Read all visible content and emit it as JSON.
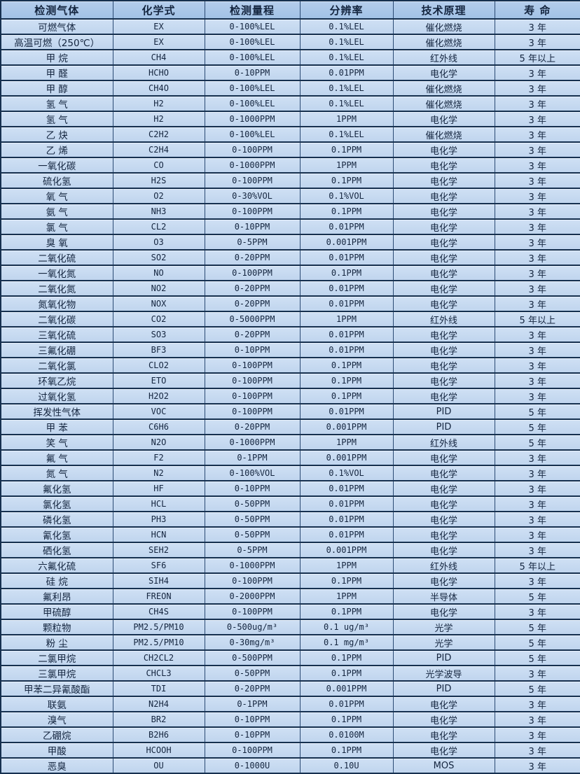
{
  "colors": {
    "header_bg": "#a9c6e8",
    "row_bg": "#c6d9f0",
    "border_dark": "#16304f",
    "border_vertical": "#2b4a73",
    "text": "#14253f"
  },
  "table": {
    "columns": [
      "检测气体",
      "化学式",
      "检测量程",
      "分辨率",
      "技术原理",
      "寿  命"
    ],
    "rows": [
      {
        "gas": "可燃气体",
        "formula": "EX",
        "range": "0-100%LEL",
        "resolution": "0.1%LEL",
        "principle": "催化燃烧",
        "lifespan": "3 年"
      },
      {
        "gas": "高温可燃（250℃）",
        "formula": "EX",
        "range": "0-100%LEL",
        "resolution": "0.1%LEL",
        "principle": "催化燃烧",
        "lifespan": "3 年"
      },
      {
        "gas": "甲  烷",
        "formula": "CH4",
        "range": "0-100%LEL",
        "resolution": "0.1%LEL",
        "principle": "红外线",
        "lifespan": "5 年以上"
      },
      {
        "gas": "甲  醛",
        "formula": "HCHO",
        "range": "0-10PPM",
        "resolution": "0.01PPM",
        "principle": "电化学",
        "lifespan": "3 年"
      },
      {
        "gas": "甲  醇",
        "formula": "CH4O",
        "range": "0-100%LEL",
        "resolution": "0.1%LEL",
        "principle": "催化燃烧",
        "lifespan": "3 年"
      },
      {
        "gas": "氢  气",
        "formula": "H2",
        "range": "0-100%LEL",
        "resolution": "0.1%LEL",
        "principle": "催化燃烧",
        "lifespan": "3 年"
      },
      {
        "gas": "氢  气",
        "formula": "H2",
        "range": "0-1000PPM",
        "resolution": "1PPM",
        "principle": "电化学",
        "lifespan": "3 年"
      },
      {
        "gas": "乙  炔",
        "formula": "C2H2",
        "range": "0-100%LEL",
        "resolution": "0.1%LEL",
        "principle": "催化燃烧",
        "lifespan": "3 年"
      },
      {
        "gas": "乙  烯",
        "formula": "C2H4",
        "range": "0-100PPM",
        "resolution": "0.1PPM",
        "principle": "电化学",
        "lifespan": "3 年"
      },
      {
        "gas": "一氧化碳",
        "formula": "CO",
        "range": "0-1000PPM",
        "resolution": "1PPM",
        "principle": "电化学",
        "lifespan": "3 年"
      },
      {
        "gas": "硫化氢",
        "formula": "H2S",
        "range": "0-100PPM",
        "resolution": "0.1PPM",
        "principle": "电化学",
        "lifespan": "3 年"
      },
      {
        "gas": "氧  气",
        "formula": "O2",
        "range": "0-30%VOL",
        "resolution": "0.1%VOL",
        "principle": "电化学",
        "lifespan": "3 年"
      },
      {
        "gas": "氨  气",
        "formula": "NH3",
        "range": "0-100PPM",
        "resolution": "0.1PPM",
        "principle": "电化学",
        "lifespan": "3 年"
      },
      {
        "gas": "氯  气",
        "formula": "CL2",
        "range": "0-10PPM",
        "resolution": "0.01PPM",
        "principle": "电化学",
        "lifespan": "3 年"
      },
      {
        "gas": "臭  氧",
        "formula": "O3",
        "range": "0-5PPM",
        "resolution": "0.001PPM",
        "principle": "电化学",
        "lifespan": "3 年"
      },
      {
        "gas": "二氧化硫",
        "formula": "SO2",
        "range": "0-20PPM",
        "resolution": "0.01PPM",
        "principle": "电化学",
        "lifespan": "3 年"
      },
      {
        "gas": "一氧化氮",
        "formula": "NO",
        "range": "0-100PPM",
        "resolution": "0.1PPM",
        "principle": "电化学",
        "lifespan": "3 年"
      },
      {
        "gas": "二氧化氮",
        "formula": "NO2",
        "range": "0-20PPM",
        "resolution": "0.01PPM",
        "principle": "电化学",
        "lifespan": "3 年"
      },
      {
        "gas": "氮氧化物",
        "formula": "NOX",
        "range": "0-20PPM",
        "resolution": "0.01PPM",
        "principle": "电化学",
        "lifespan": "3 年"
      },
      {
        "gas": "二氧化碳",
        "formula": "CO2",
        "range": "0-5000PPM",
        "resolution": "1PPM",
        "principle": "红外线",
        "lifespan": "5 年以上"
      },
      {
        "gas": "三氧化硫",
        "formula": "SO3",
        "range": "0-20PPM",
        "resolution": "0.01PPM",
        "principle": "电化学",
        "lifespan": "3 年"
      },
      {
        "gas": "三氟化硼",
        "formula": "BF3",
        "range": "0-10PPM",
        "resolution": "0.01PPM",
        "principle": "电化学",
        "lifespan": "3 年"
      },
      {
        "gas": "二氧化氯",
        "formula": "CLO2",
        "range": "0-100PPM",
        "resolution": "0.1PPM",
        "principle": "电化学",
        "lifespan": "3 年"
      },
      {
        "gas": "环氧乙烷",
        "formula": "ETO",
        "range": "0-100PPM",
        "resolution": "0.1PPM",
        "principle": "电化学",
        "lifespan": "3 年"
      },
      {
        "gas": "过氧化氢",
        "formula": "H2O2",
        "range": "0-100PPM",
        "resolution": "0.1PPM",
        "principle": "电化学",
        "lifespan": "3 年"
      },
      {
        "gas": "挥发性气体",
        "formula": "VOC",
        "range": "0-100PPM",
        "resolution": "0.01PPM",
        "principle": "PID",
        "lifespan": "5 年"
      },
      {
        "gas": "甲  苯",
        "formula": "C6H6",
        "range": "0-20PPM",
        "resolution": "0.001PPM",
        "principle": "PID",
        "lifespan": "5 年"
      },
      {
        "gas": "笑  气",
        "formula": "N2O",
        "range": "0-1000PPM",
        "resolution": "1PPM",
        "principle": "红外线",
        "lifespan": "5 年"
      },
      {
        "gas": "氟  气",
        "formula": "F2",
        "range": "0-1PPM",
        "resolution": "0.001PPM",
        "principle": "电化学",
        "lifespan": "3 年"
      },
      {
        "gas": "氮  气",
        "formula": "N2",
        "range": "0-100%VOL",
        "resolution": "0.1%VOL",
        "principle": "电化学",
        "lifespan": "3 年"
      },
      {
        "gas": "氟化氢",
        "formula": "HF",
        "range": "0-10PPM",
        "resolution": "0.01PPM",
        "principle": "电化学",
        "lifespan": "3 年"
      },
      {
        "gas": "氯化氢",
        "formula": "HCL",
        "range": "0-50PPM",
        "resolution": "0.01PPM",
        "principle": "电化学",
        "lifespan": "3 年"
      },
      {
        "gas": "磷化氢",
        "formula": "PH3",
        "range": "0-50PPM",
        "resolution": "0.01PPM",
        "principle": "电化学",
        "lifespan": "3 年"
      },
      {
        "gas": "氰化氢",
        "formula": "HCN",
        "range": "0-50PPM",
        "resolution": "0.01PPM",
        "principle": "电化学",
        "lifespan": "3 年"
      },
      {
        "gas": "硒化氢",
        "formula": "SEH2",
        "range": "0-5PPM",
        "resolution": "0.001PPM",
        "principle": "电化学",
        "lifespan": "3 年"
      },
      {
        "gas": "六氟化硫",
        "formula": "SF6",
        "range": "0-1000PPM",
        "resolution": "1PPM",
        "principle": "红外线",
        "lifespan": "5 年以上"
      },
      {
        "gas": "硅  烷",
        "formula": "SIH4",
        "range": "0-100PPM",
        "resolution": "0.1PPM",
        "principle": "电化学",
        "lifespan": "3 年"
      },
      {
        "gas": "氟利昂",
        "formula": "FREON",
        "range": "0-2000PPM",
        "resolution": "1PPM",
        "principle": "半导体",
        "lifespan": "5 年"
      },
      {
        "gas": "甲硫醇",
        "formula": "CH4S",
        "range": "0-100PPM",
        "resolution": "0.1PPM",
        "principle": "电化学",
        "lifespan": "3 年"
      },
      {
        "gas": "颗粒物",
        "formula": "PM2.5/PM10",
        "range": "0-500ug/m³",
        "resolution": "0.1 ug/m³",
        "principle": "光学",
        "lifespan": "5 年"
      },
      {
        "gas": "粉  尘",
        "formula": "PM2.5/PM10",
        "range": "0-30mg/m³",
        "resolution": "0.1 mg/m³",
        "principle": "光学",
        "lifespan": "5 年"
      },
      {
        "gas": "二氯甲烷",
        "formula": "CH2CL2",
        "range": "0-500PPM",
        "resolution": "0.1PPM",
        "principle": "PID",
        "lifespan": "5 年"
      },
      {
        "gas": "三氯甲烷",
        "formula": "CHCL3",
        "range": "0-50PPM",
        "resolution": "0.1PPM",
        "principle": "光学波导",
        "lifespan": "3 年"
      },
      {
        "gas": "甲苯二异氰酸酯",
        "formula": "TDI",
        "range": "0-20PPM",
        "resolution": "0.001PPM",
        "principle": "PID",
        "lifespan": "5 年"
      },
      {
        "gas": "联氨",
        "formula": "N2H4",
        "range": "0-1PPM",
        "resolution": "0.01PPM",
        "principle": "电化学",
        "lifespan": "3 年"
      },
      {
        "gas": "溴气",
        "formula": "BR2",
        "range": "0-10PPM",
        "resolution": "0.1PPM",
        "principle": "电化学",
        "lifespan": "3 年"
      },
      {
        "gas": "乙硼烷",
        "formula": "B2H6",
        "range": "0-10PPM",
        "resolution": "0.0100M",
        "principle": "电化学",
        "lifespan": "3 年"
      },
      {
        "gas": "甲酸",
        "formula": "HCOOH",
        "range": "0-100PPM",
        "resolution": "0.1PPM",
        "principle": "电化学",
        "lifespan": "3 年"
      },
      {
        "gas": "恶臭",
        "formula": "OU",
        "range": "0-1000U",
        "resolution": "0.10U",
        "principle": "MOS",
        "lifespan": "3 年"
      }
    ]
  }
}
